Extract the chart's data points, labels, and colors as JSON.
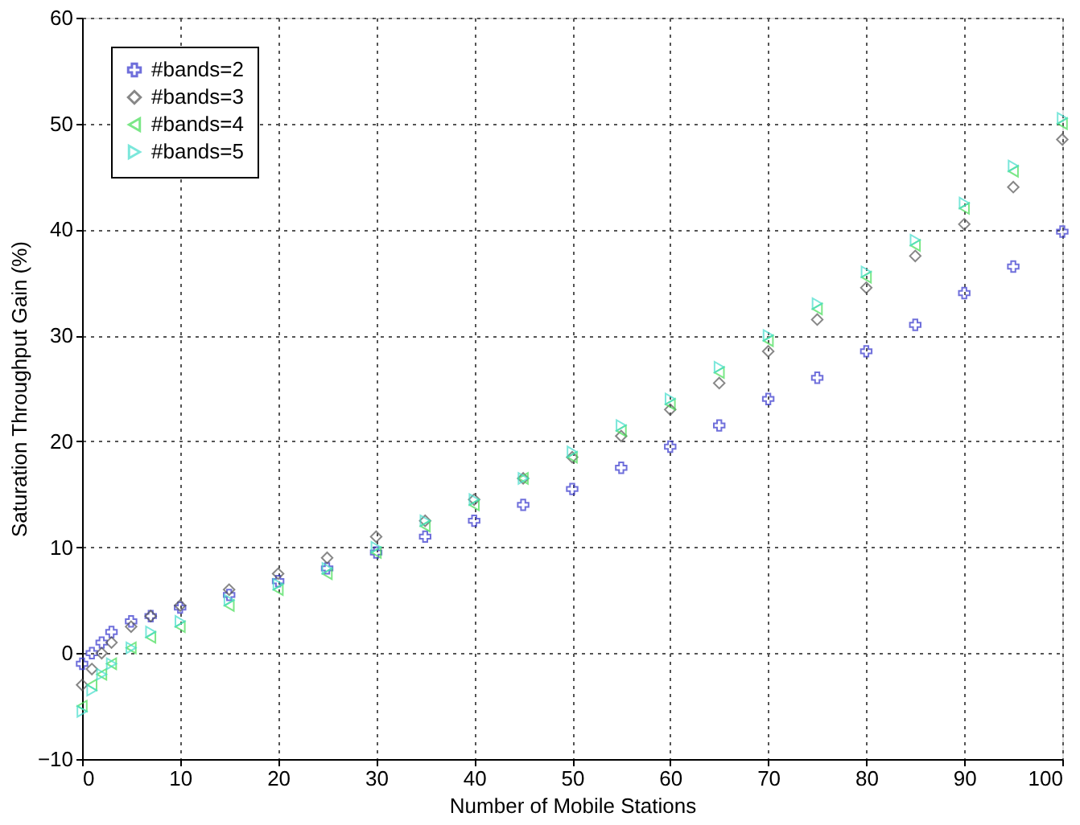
{
  "chart_data": {
    "type": "scatter",
    "xlabel": "Number of Mobile Stations",
    "ylabel": "Saturation Throughput Gain (%)",
    "x": [
      0,
      1,
      2,
      3,
      5,
      7,
      10,
      15,
      20,
      25,
      30,
      35,
      40,
      45,
      50,
      55,
      60,
      65,
      70,
      75,
      80,
      85,
      90,
      95,
      100
    ],
    "series": [
      {
        "name": "#bands=2",
        "color": "#3333cc",
        "marker": "cross",
        "values": [
          -1,
          0,
          1,
          2,
          3,
          3.5,
          4.3,
          5.5,
          6.8,
          8,
          9.5,
          11,
          12.5,
          14,
          15.5,
          17.5,
          19.5,
          21.5,
          24,
          26,
          28.5,
          31,
          34,
          36.5,
          39.8
        ]
      },
      {
        "name": "#bands=3",
        "color": "#555555",
        "marker": "diamond",
        "values": [
          -3,
          -1.5,
          0,
          1,
          2.5,
          3.5,
          4.5,
          6,
          7.5,
          9,
          11,
          12.5,
          14.5,
          16.5,
          18.5,
          20.5,
          23,
          25.5,
          28.5,
          31.5,
          34.5,
          37.5,
          40.5,
          44,
          48.5
        ]
      },
      {
        "name": "#bands=4",
        "color": "#44dd55",
        "marker": "triangle-left",
        "values": [
          -5,
          -3,
          -2,
          -1,
          0.5,
          1.5,
          2.5,
          4.5,
          6,
          7.5,
          9.5,
          12,
          14,
          16.5,
          18.5,
          21,
          23.5,
          26.5,
          29.5,
          32.5,
          35.5,
          38.5,
          42,
          45.5,
          50
        ]
      },
      {
        "name": "#bands=5",
        "color": "#44ddcc",
        "marker": "triangle-right",
        "values": [
          -5.5,
          -3.5,
          -2,
          -1,
          0.5,
          2,
          3,
          5,
          6.5,
          8,
          10,
          12.5,
          14.5,
          16.5,
          19,
          21.5,
          24,
          27,
          30,
          33,
          36,
          39,
          42.5,
          46,
          50.5
        ]
      }
    ],
    "xlim": [
      0,
      100
    ],
    "xticks": [
      0,
      10,
      20,
      30,
      40,
      50,
      60,
      70,
      80,
      90,
      100
    ],
    "ylim": [
      -10,
      60
    ],
    "yticks": [
      -10,
      0,
      10,
      20,
      30,
      40,
      50,
      60
    ],
    "grid": true,
    "legend": "top left"
  }
}
